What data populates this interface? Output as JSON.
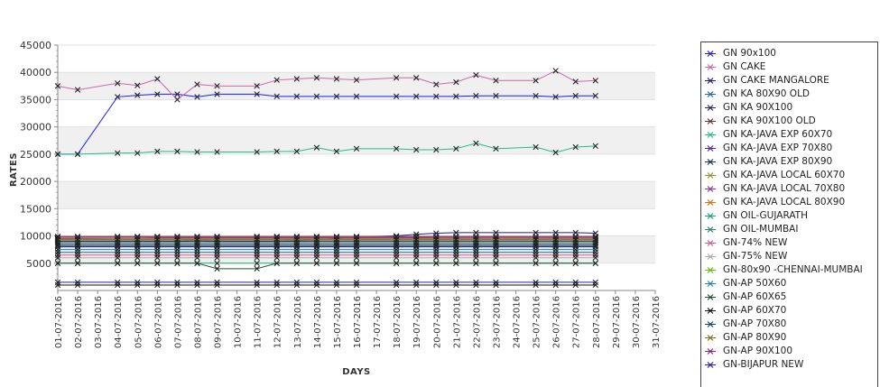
{
  "chart_data": {
    "type": "line",
    "xlabel": "DAYS",
    "ylabel": "RATES",
    "ylim": [
      0,
      45000
    ],
    "yticks": [
      5000,
      10000,
      15000,
      20000,
      25000,
      30000,
      35000,
      40000,
      45000
    ],
    "y_bands": true,
    "categories": [
      "01-07-2016",
      "02-07-2016",
      "03-07-2016",
      "04-07-2016",
      "05-07-2016",
      "06-07-2016",
      "07-07-2016",
      "08-07-2016",
      "09-07-2016",
      "10-07-2016",
      "11-07-2016",
      "12-07-2016",
      "13-07-2016",
      "14-07-2016",
      "15-07-2016",
      "16-07-2016",
      "17-07-2016",
      "18-07-2016",
      "19-07-2016",
      "20-07-2016",
      "21-07-2016",
      "22-07-2016",
      "23-07-2016",
      "24-07-2016",
      "25-07-2016",
      "26-07-2016",
      "27-07-2016",
      "28-07-2016",
      "29-07-2016",
      "30-07-2016",
      "31-07-2016"
    ],
    "series": [
      {
        "name": "GN 90x100",
        "color": "#1a1aff",
        "values": [
          25000,
          25000,
          null,
          35500,
          35800,
          36000,
          36000,
          35500,
          36000,
          null,
          36000,
          35600,
          35600,
          35600,
          35600,
          35600,
          null,
          35600,
          35600,
          35600,
          35600,
          35700,
          35700,
          null,
          35700,
          35500,
          35700,
          35700,
          null,
          null,
          null
        ]
      },
      {
        "name": "GN CAKE",
        "color": "#cc66aa",
        "values": [
          37500,
          36800,
          null,
          38000,
          37600,
          38800,
          35000,
          37800,
          37500,
          null,
          37500,
          38600,
          38800,
          39000,
          38800,
          38600,
          null,
          39000,
          39000,
          37800,
          38200,
          39500,
          38500,
          null,
          38500,
          40300,
          38300,
          38500,
          null,
          null,
          null
        ]
      },
      {
        "name": "GN CAKE MANGALORE",
        "color": "#1a1a99",
        "values": [
          9000,
          9000,
          null,
          9000,
          9000,
          9000,
          9000,
          9200,
          9000,
          null,
          9000,
          9000,
          9100,
          9200,
          9500,
          9800,
          null,
          10000,
          10300,
          10500,
          10600,
          10600,
          10600,
          null,
          10600,
          10600,
          10600,
          10500,
          null,
          null,
          null
        ]
      },
      {
        "name": "GN KA 80X90 OLD",
        "color": "#2266aa",
        "values": [
          7000,
          7000,
          null,
          7000,
          7000,
          7000,
          7000,
          7000,
          7000,
          null,
          7000,
          7000,
          7000,
          7000,
          7000,
          7000,
          null,
          7000,
          7000,
          7000,
          7000,
          7000,
          7000,
          null,
          7000,
          7000,
          7000,
          7000,
          null,
          null,
          null
        ]
      },
      {
        "name": "GN KA 90X100",
        "color": "#332266",
        "values": [
          8000,
          8000,
          null,
          8000,
          8000,
          8000,
          8000,
          8000,
          8000,
          null,
          8000,
          8000,
          8000,
          8000,
          8000,
          8000,
          null,
          8000,
          8000,
          8000,
          8000,
          8000,
          8000,
          null,
          8000,
          8000,
          8000,
          8000,
          null,
          null,
          null
        ]
      },
      {
        "name": "GN KA 90X100 OLD",
        "color": "#663333",
        "values": [
          9500,
          9500,
          null,
          9600,
          9600,
          9700,
          9700,
          9700,
          9700,
          null,
          9700,
          9700,
          9700,
          9700,
          9700,
          9700,
          null,
          9700,
          9700,
          9800,
          9800,
          9800,
          9800,
          null,
          9800,
          9800,
          9800,
          9800,
          null,
          null,
          null
        ]
      },
      {
        "name": "GN KA-JAVA EXP 60X70",
        "color": "#22bb88",
        "values": [
          25000,
          25000,
          null,
          25200,
          25200,
          25500,
          25500,
          25400,
          25400,
          null,
          25400,
          25500,
          25500,
          26200,
          25500,
          26000,
          null,
          26000,
          25800,
          25800,
          26000,
          27000,
          26000,
          null,
          26300,
          25300,
          26300,
          26500,
          null,
          null,
          null
        ]
      },
      {
        "name": "GN KA-JAVA EXP 70X80",
        "color": "#5522aa",
        "values": [
          9000,
          9000,
          null,
          9000,
          9000,
          9000,
          9000,
          9000,
          9000,
          null,
          9000,
          9000,
          9000,
          9000,
          9000,
          9000,
          null,
          9000,
          9000,
          9000,
          9000,
          9000,
          9000,
          null,
          9000,
          9000,
          9000,
          9000,
          null,
          null,
          null
        ]
      },
      {
        "name": "GN KA-JAVA EXP 80X90",
        "color": "#113355",
        "values": [
          8500,
          8500,
          null,
          8500,
          8500,
          8500,
          8500,
          8500,
          8500,
          null,
          8500,
          8500,
          8500,
          8500,
          8500,
          8500,
          null,
          8500,
          8500,
          8500,
          8500,
          8500,
          8500,
          null,
          8500,
          8500,
          8500,
          8500,
          null,
          null,
          null
        ]
      },
      {
        "name": "GN KA-JAVA LOCAL 60X70",
        "color": "#889933",
        "values": [
          9200,
          9200,
          null,
          9200,
          9200,
          9200,
          9200,
          9200,
          9200,
          null,
          9200,
          9200,
          9200,
          9200,
          9200,
          9200,
          null,
          9200,
          9200,
          9200,
          9200,
          9200,
          9200,
          null,
          9200,
          9200,
          9200,
          9200,
          null,
          null,
          null
        ]
      },
      {
        "name": "GN KA-JAVA LOCAL 70X80",
        "color": "#9933aa",
        "values": [
          9600,
          9600,
          null,
          9600,
          9600,
          9600,
          9600,
          9600,
          9600,
          null,
          9600,
          9600,
          9600,
          9600,
          9600,
          9600,
          null,
          9600,
          9600,
          9600,
          9600,
          9600,
          9600,
          null,
          9600,
          9600,
          9600,
          9600,
          null,
          null,
          null
        ]
      },
      {
        "name": "GN KA-JAVA LOCAL 80X90",
        "color": "#cc7711",
        "values": [
          9800,
          9800,
          null,
          9800,
          9800,
          9800,
          9800,
          9800,
          9800,
          null,
          9800,
          9800,
          9800,
          9800,
          9800,
          9800,
          null,
          9800,
          9800,
          9800,
          9800,
          9800,
          9800,
          null,
          9800,
          9800,
          9800,
          9800,
          null,
          null,
          null
        ]
      },
      {
        "name": "GN OIL-GUJARATH",
        "color": "#11aa77",
        "values": [
          5000,
          5000,
          null,
          5000,
          5000,
          5000,
          5000,
          5000,
          5000,
          null,
          5000,
          5000,
          5000,
          5000,
          5000,
          5000,
          null,
          5000,
          5000,
          5000,
          5000,
          5000,
          5000,
          null,
          5000,
          5000,
          5000,
          5000,
          null,
          null,
          null
        ]
      },
      {
        "name": "GN OIL-MUMBAI",
        "color": "#338866",
        "values": [
          8800,
          8800,
          null,
          8800,
          8800,
          8800,
          8800,
          8800,
          8800,
          null,
          8800,
          8800,
          8800,
          8800,
          8800,
          8800,
          null,
          8800,
          8800,
          8800,
          8800,
          8800,
          8800,
          null,
          8800,
          8800,
          8800,
          8800,
          null,
          null,
          null
        ]
      },
      {
        "name": "GN-74% NEW",
        "color": "#dd5588",
        "values": [
          6500,
          6500,
          null,
          6500,
          6500,
          6500,
          6500,
          6500,
          6500,
          null,
          6500,
          6500,
          6500,
          6500,
          6500,
          6500,
          null,
          6500,
          6500,
          6500,
          6500,
          6500,
          6500,
          null,
          6500,
          6500,
          6500,
          6500,
          null,
          null,
          null
        ]
      },
      {
        "name": "GN-75% NEW",
        "color": "#aaaaaa",
        "values": [
          6000,
          6000,
          null,
          6000,
          6000,
          6000,
          6000,
          6000,
          6000,
          null,
          6000,
          6000,
          6000,
          6000,
          6000,
          6000,
          null,
          6000,
          6000,
          6000,
          6000,
          6000,
          6000,
          null,
          6000,
          6000,
          6000,
          6000,
          null,
          null,
          null
        ]
      },
      {
        "name": "GN-80x90 -CHENNAI-MUMBAI",
        "color": "#66bb11",
        "values": [
          9400,
          9400,
          null,
          9400,
          9400,
          9400,
          9400,
          9400,
          9400,
          null,
          9400,
          9400,
          9400,
          9400,
          9400,
          9400,
          null,
          9400,
          9400,
          9400,
          9400,
          9400,
          9400,
          null,
          9400,
          9400,
          9400,
          9400,
          null,
          null,
          null
        ]
      },
      {
        "name": "GN-AP 50X60",
        "color": "#2288aa",
        "values": [
          7500,
          7500,
          null,
          7500,
          7500,
          7500,
          7500,
          7500,
          7500,
          null,
          7500,
          7500,
          7500,
          7500,
          7500,
          7500,
          null,
          7500,
          7500,
          7500,
          7500,
          7500,
          7500,
          null,
          7500,
          7500,
          7500,
          7500,
          null,
          null,
          null
        ]
      },
      {
        "name": "GN-AP 60X65",
        "color": "#225533",
        "values": [
          5000,
          5000,
          null,
          5000,
          5000,
          5000,
          5000,
          5000,
          4000,
          null,
          4000,
          5000,
          5000,
          5000,
          5000,
          5000,
          null,
          5000,
          5000,
          5000,
          5000,
          5000,
          5000,
          null,
          5000,
          5000,
          5000,
          5000,
          null,
          null,
          null
        ]
      },
      {
        "name": "GN-AP 60X70",
        "color": "#111111",
        "values": [
          1000,
          1000,
          null,
          1000,
          1000,
          1000,
          1000,
          1000,
          1000,
          null,
          1000,
          1000,
          1000,
          1000,
          1000,
          1000,
          null,
          1000,
          1000,
          1000,
          1000,
          1000,
          1000,
          null,
          1000,
          1000,
          1000,
          1000,
          null,
          null,
          null
        ]
      },
      {
        "name": "GN-AP 70X80",
        "color": "#114477",
        "values": [
          8200,
          8200,
          null,
          8200,
          8200,
          8200,
          8200,
          8200,
          8200,
          null,
          8200,
          8200,
          8200,
          8200,
          8200,
          8200,
          null,
          8200,
          8200,
          8200,
          8200,
          8200,
          8200,
          null,
          8200,
          8200,
          8200,
          8200,
          null,
          null,
          null
        ]
      },
      {
        "name": "GN-AP 80X90",
        "color": "#777722",
        "values": [
          9300,
          9300,
          null,
          9300,
          9300,
          9300,
          9300,
          9300,
          9300,
          null,
          9300,
          9300,
          9300,
          9300,
          9300,
          9300,
          null,
          9300,
          9300,
          9300,
          9300,
          9300,
          9300,
          null,
          9300,
          9300,
          9300,
          9300,
          null,
          null,
          null
        ]
      },
      {
        "name": "GN-AP 90X100",
        "color": "#882288",
        "values": [
          9900,
          9900,
          null,
          9900,
          9900,
          9900,
          9900,
          9900,
          9900,
          null,
          9900,
          9900,
          9900,
          9900,
          9900,
          9900,
          null,
          9900,
          9900,
          9900,
          9900,
          9900,
          9900,
          null,
          9900,
          9900,
          9900,
          9900,
          null,
          null,
          null
        ]
      },
      {
        "name": "GN-BIJAPUR NEW",
        "color": "#2222aa",
        "values": [
          1500,
          1500,
          null,
          1500,
          1500,
          1500,
          1500,
          1500,
          1500,
          null,
          1500,
          1500,
          1500,
          1500,
          1500,
          1500,
          null,
          1500,
          1500,
          1500,
          1500,
          1500,
          1500,
          null,
          1500,
          1500,
          1500,
          1500,
          null,
          null,
          null
        ]
      }
    ]
  }
}
